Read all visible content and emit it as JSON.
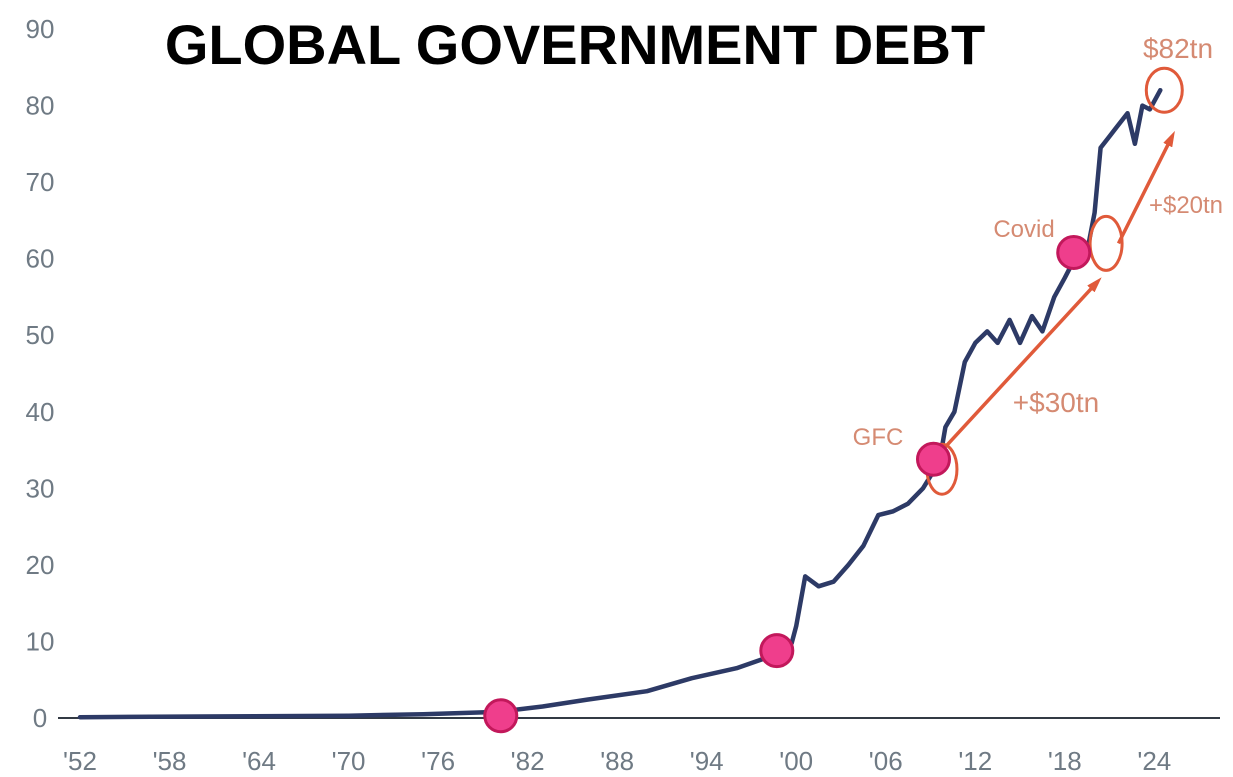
{
  "chart_data": {
    "type": "line",
    "title": "GLOBAL GOVERNMENT DEBT",
    "xlabel": "",
    "ylabel": "",
    "xlim": [
      1952,
      2028
    ],
    "ylim": [
      0,
      90
    ],
    "x_ticks": [
      "'52",
      "'58",
      "'64",
      "'70",
      "'76",
      "'82",
      "'88",
      "'94",
      "'00",
      "'06",
      "'12",
      "'18",
      "'24"
    ],
    "y_ticks": [
      "0",
      "10",
      "20",
      "30",
      "40",
      "50",
      "60",
      "70",
      "80",
      "90"
    ],
    "grid": false,
    "colors": {
      "line": "#2d3a66",
      "marker": "#ef3e8c",
      "annotation": "#e05a3a",
      "annotation_text": "#d58a72"
    },
    "series": [
      {
        "x": [
          1952,
          1960,
          1970,
          1975,
          1980,
          1983,
          1986,
          1990,
          1993,
          1996,
          1998.5,
          1999.7,
          2000.0,
          2000.6,
          2001.5,
          2002.5,
          2003.5,
          2004.5,
          2005.5,
          2006.5,
          2007.5,
          2008.5,
          2009.6,
          2010.0,
          2010.6,
          2011.3,
          2012.0,
          2012.8,
          2013.5,
          2014.3,
          2015.0,
          2015.8,
          2016.5,
          2017.3,
          2018.0,
          2018.8,
          2019.5,
          2020.0,
          2020.4,
          2021.0,
          2021.6,
          2022.2,
          2022.7,
          2023.2,
          2023.7,
          2024.4
        ],
        "y": [
          0.1,
          0.2,
          0.3,
          0.5,
          0.8,
          1.5,
          2.4,
          3.5,
          5.2,
          6.5,
          8.2,
          9.8,
          12.0,
          18.5,
          17.2,
          17.8,
          20.0,
          22.5,
          26.5,
          27.0,
          28.0,
          30.0,
          33.5,
          38.0,
          40.0,
          46.5,
          49.0,
          50.5,
          49.0,
          52.0,
          49.0,
          52.5,
          50.5,
          55.0,
          57.5,
          60.5,
          61.0,
          66.0,
          74.5,
          76.0,
          77.5,
          79.0,
          75.0,
          80.0,
          79.5,
          82.0
        ]
      }
    ],
    "highlight_points": [
      {
        "x": 1980.2,
        "y": 0.3
      },
      {
        "x": 1998.7,
        "y": 8.8
      },
      {
        "x": 2009.2,
        "y": 33.8
      },
      {
        "x": 2018.6,
        "y": 60.8
      }
    ],
    "annotations": [
      {
        "text": "$82tn",
        "x": 2024.4,
        "y": 82.0
      },
      {
        "text": "Covid",
        "x": 2020.5,
        "y": 62.0
      },
      {
        "text": "GFC",
        "x": 2009.5,
        "y": 32.5
      },
      {
        "text": "+$30tn"
      },
      {
        "text": "+$20tn"
      }
    ],
    "arrows": [
      {
        "from": [
          2009.8,
          35.0
        ],
        "to": [
          2020.2,
          57.0
        ]
      },
      {
        "from": [
          2021.6,
          62.0
        ],
        "to": [
          2025.2,
          76.0
        ]
      }
    ]
  }
}
